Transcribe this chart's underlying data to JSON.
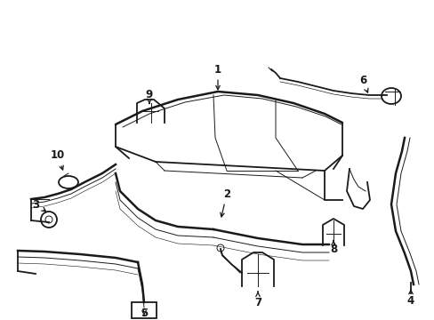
{
  "bg_color": "#ffffff",
  "line_color": "#1a1a1a",
  "lw_main": 1.3,
  "lw_thin": 0.7,
  "lw_thick": 1.8,
  "figsize": [
    4.89,
    3.6
  ],
  "dpi": 100,
  "xlim": [
    0,
    489
  ],
  "ylim": [
    0,
    360
  ]
}
